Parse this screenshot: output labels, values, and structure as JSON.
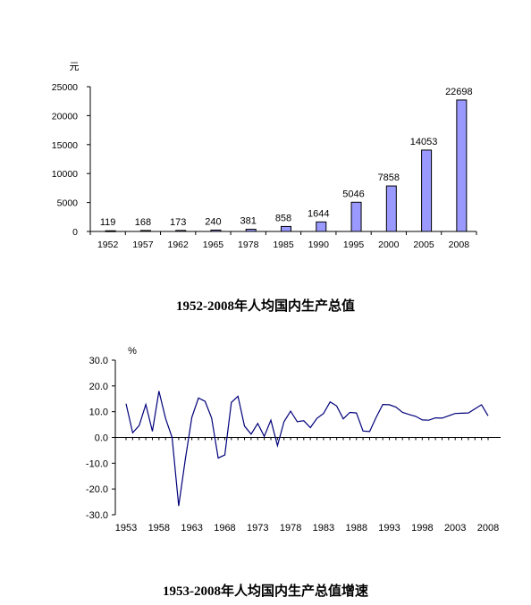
{
  "chart_data": [
    {
      "type": "bar",
      "title": "1952-2008年人均国内生产总值",
      "ylabel": "元",
      "categories": [
        "1952",
        "1957",
        "1962",
        "1965",
        "1978",
        "1985",
        "1990",
        "1995",
        "2000",
        "2005",
        "2008"
      ],
      "values": [
        119,
        168,
        173,
        240,
        381,
        858,
        1644,
        5046,
        7858,
        14053,
        22698
      ],
      "ylim": [
        0,
        25000
      ],
      "yticks": [
        "25000",
        "20000",
        "15000",
        "10000",
        "5000",
        "0"
      ],
      "bar_color": "#9999ff",
      "grid": false
    },
    {
      "type": "line",
      "title": "1953-2008年人均国内生产总值增速",
      "ylabel": "%",
      "x": [
        1953,
        1954,
        1955,
        1956,
        1957,
        1958,
        1959,
        1960,
        1961,
        1962,
        1963,
        1964,
        1965,
        1966,
        1967,
        1968,
        1969,
        1970,
        1971,
        1972,
        1973,
        1974,
        1975,
        1976,
        1977,
        1978,
        1979,
        1980,
        1981,
        1982,
        1983,
        1984,
        1985,
        1986,
        1987,
        1988,
        1989,
        1990,
        1991,
        1992,
        1993,
        1994,
        1995,
        1996,
        1997,
        1998,
        1999,
        2000,
        2001,
        2002,
        2003,
        2004,
        2005,
        2006,
        2007,
        2008
      ],
      "values": [
        13.1,
        1.8,
        4.6,
        12.8,
        2.4,
        18.0,
        7.4,
        0,
        -26.6,
        -8.5,
        7.8,
        15.3,
        14.0,
        7.6,
        -8.0,
        -6.8,
        13.6,
        16.0,
        4.4,
        1.3,
        5.4,
        0.4,
        6.7,
        -3.2,
        6.1,
        10.2,
        6.1,
        6.5,
        3.8,
        7.4,
        9.3,
        13.8,
        12.2,
        7.2,
        9.7,
        9.5,
        2.5,
        2.3,
        7.8,
        12.8,
        12.7,
        11.8,
        9.7,
        8.9,
        8.2,
        6.8,
        6.7,
        7.6,
        7.5,
        8.4,
        9.3,
        9.4,
        9.5,
        11.1,
        12.7,
        8.4
      ],
      "ylim": [
        -30,
        30
      ],
      "yticks": [
        "30.0",
        "20.0",
        "10.0",
        "0.0",
        "-10.0",
        "-20.0",
        "-30.0"
      ],
      "xticks": [
        "1953",
        "1958",
        "1963",
        "1968",
        "1973",
        "1978",
        "1983",
        "1988",
        "1993",
        "1998",
        "2003",
        "2008"
      ],
      "line_color": "#00007a",
      "grid": false
    }
  ]
}
